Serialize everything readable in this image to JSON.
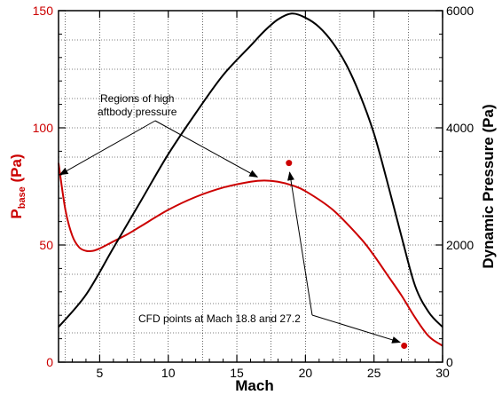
{
  "chart_data": {
    "type": "line",
    "xlabel": "Mach",
    "ylabel_left": {
      "main": "P",
      "sub": "base",
      "tail": " (Pa)"
    },
    "ylabel_right": "Dynamic Pressure (Pa)",
    "xlim": [
      2,
      30
    ],
    "ylim_left": [
      0,
      150
    ],
    "ylim_right": [
      0,
      6000
    ],
    "x_ticks": [
      "5",
      "10",
      "15",
      "20",
      "25",
      "30"
    ],
    "y_ticks_left": [
      "0",
      "50",
      "100",
      "150"
    ],
    "y_ticks_right": [
      "0",
      "2000",
      "4000",
      "6000"
    ],
    "grid": true,
    "series": [
      {
        "axis": "left",
        "color": "#cc0000",
        "x": [
          2,
          2.5,
          3,
          3.5,
          4,
          4.5,
          5,
          6,
          7,
          8,
          10,
          12,
          14,
          16,
          17,
          18,
          19,
          20,
          22,
          24,
          25,
          26,
          27,
          28,
          29,
          30
        ],
        "values": [
          85,
          65,
          54,
          49,
          47.5,
          47.5,
          48.5,
          51.5,
          54.5,
          58,
          65,
          70.5,
          74.5,
          77,
          77.5,
          77,
          75.5,
          73,
          65,
          53,
          45.5,
          37,
          28.5,
          19,
          11,
          7
        ]
      },
      {
        "axis": "right",
        "color": "#000000",
        "x": [
          2,
          4,
          6,
          8,
          10,
          12,
          14,
          16,
          17,
          18,
          19,
          20,
          21,
          22,
          23,
          24,
          25,
          26,
          27,
          28,
          29,
          30
        ],
        "values": [
          600,
          1150,
          1950,
          2750,
          3550,
          4250,
          4900,
          5400,
          5650,
          5850,
          5950,
          5880,
          5720,
          5450,
          5070,
          4550,
          3900,
          3050,
          2150,
          1300,
          850,
          600
        ]
      }
    ],
    "points": [
      {
        "x": 18.8,
        "y": 85,
        "color": "#cc0000"
      },
      {
        "x": 27.2,
        "y": 7,
        "color": "#cc0000"
      }
    ],
    "annotations": [
      {
        "text_lines": [
          "Regions of high",
          "aftbody pressure"
        ]
      },
      {
        "text_lines": [
          "CFD points at Mach 18.8 and 27.2"
        ]
      }
    ]
  }
}
